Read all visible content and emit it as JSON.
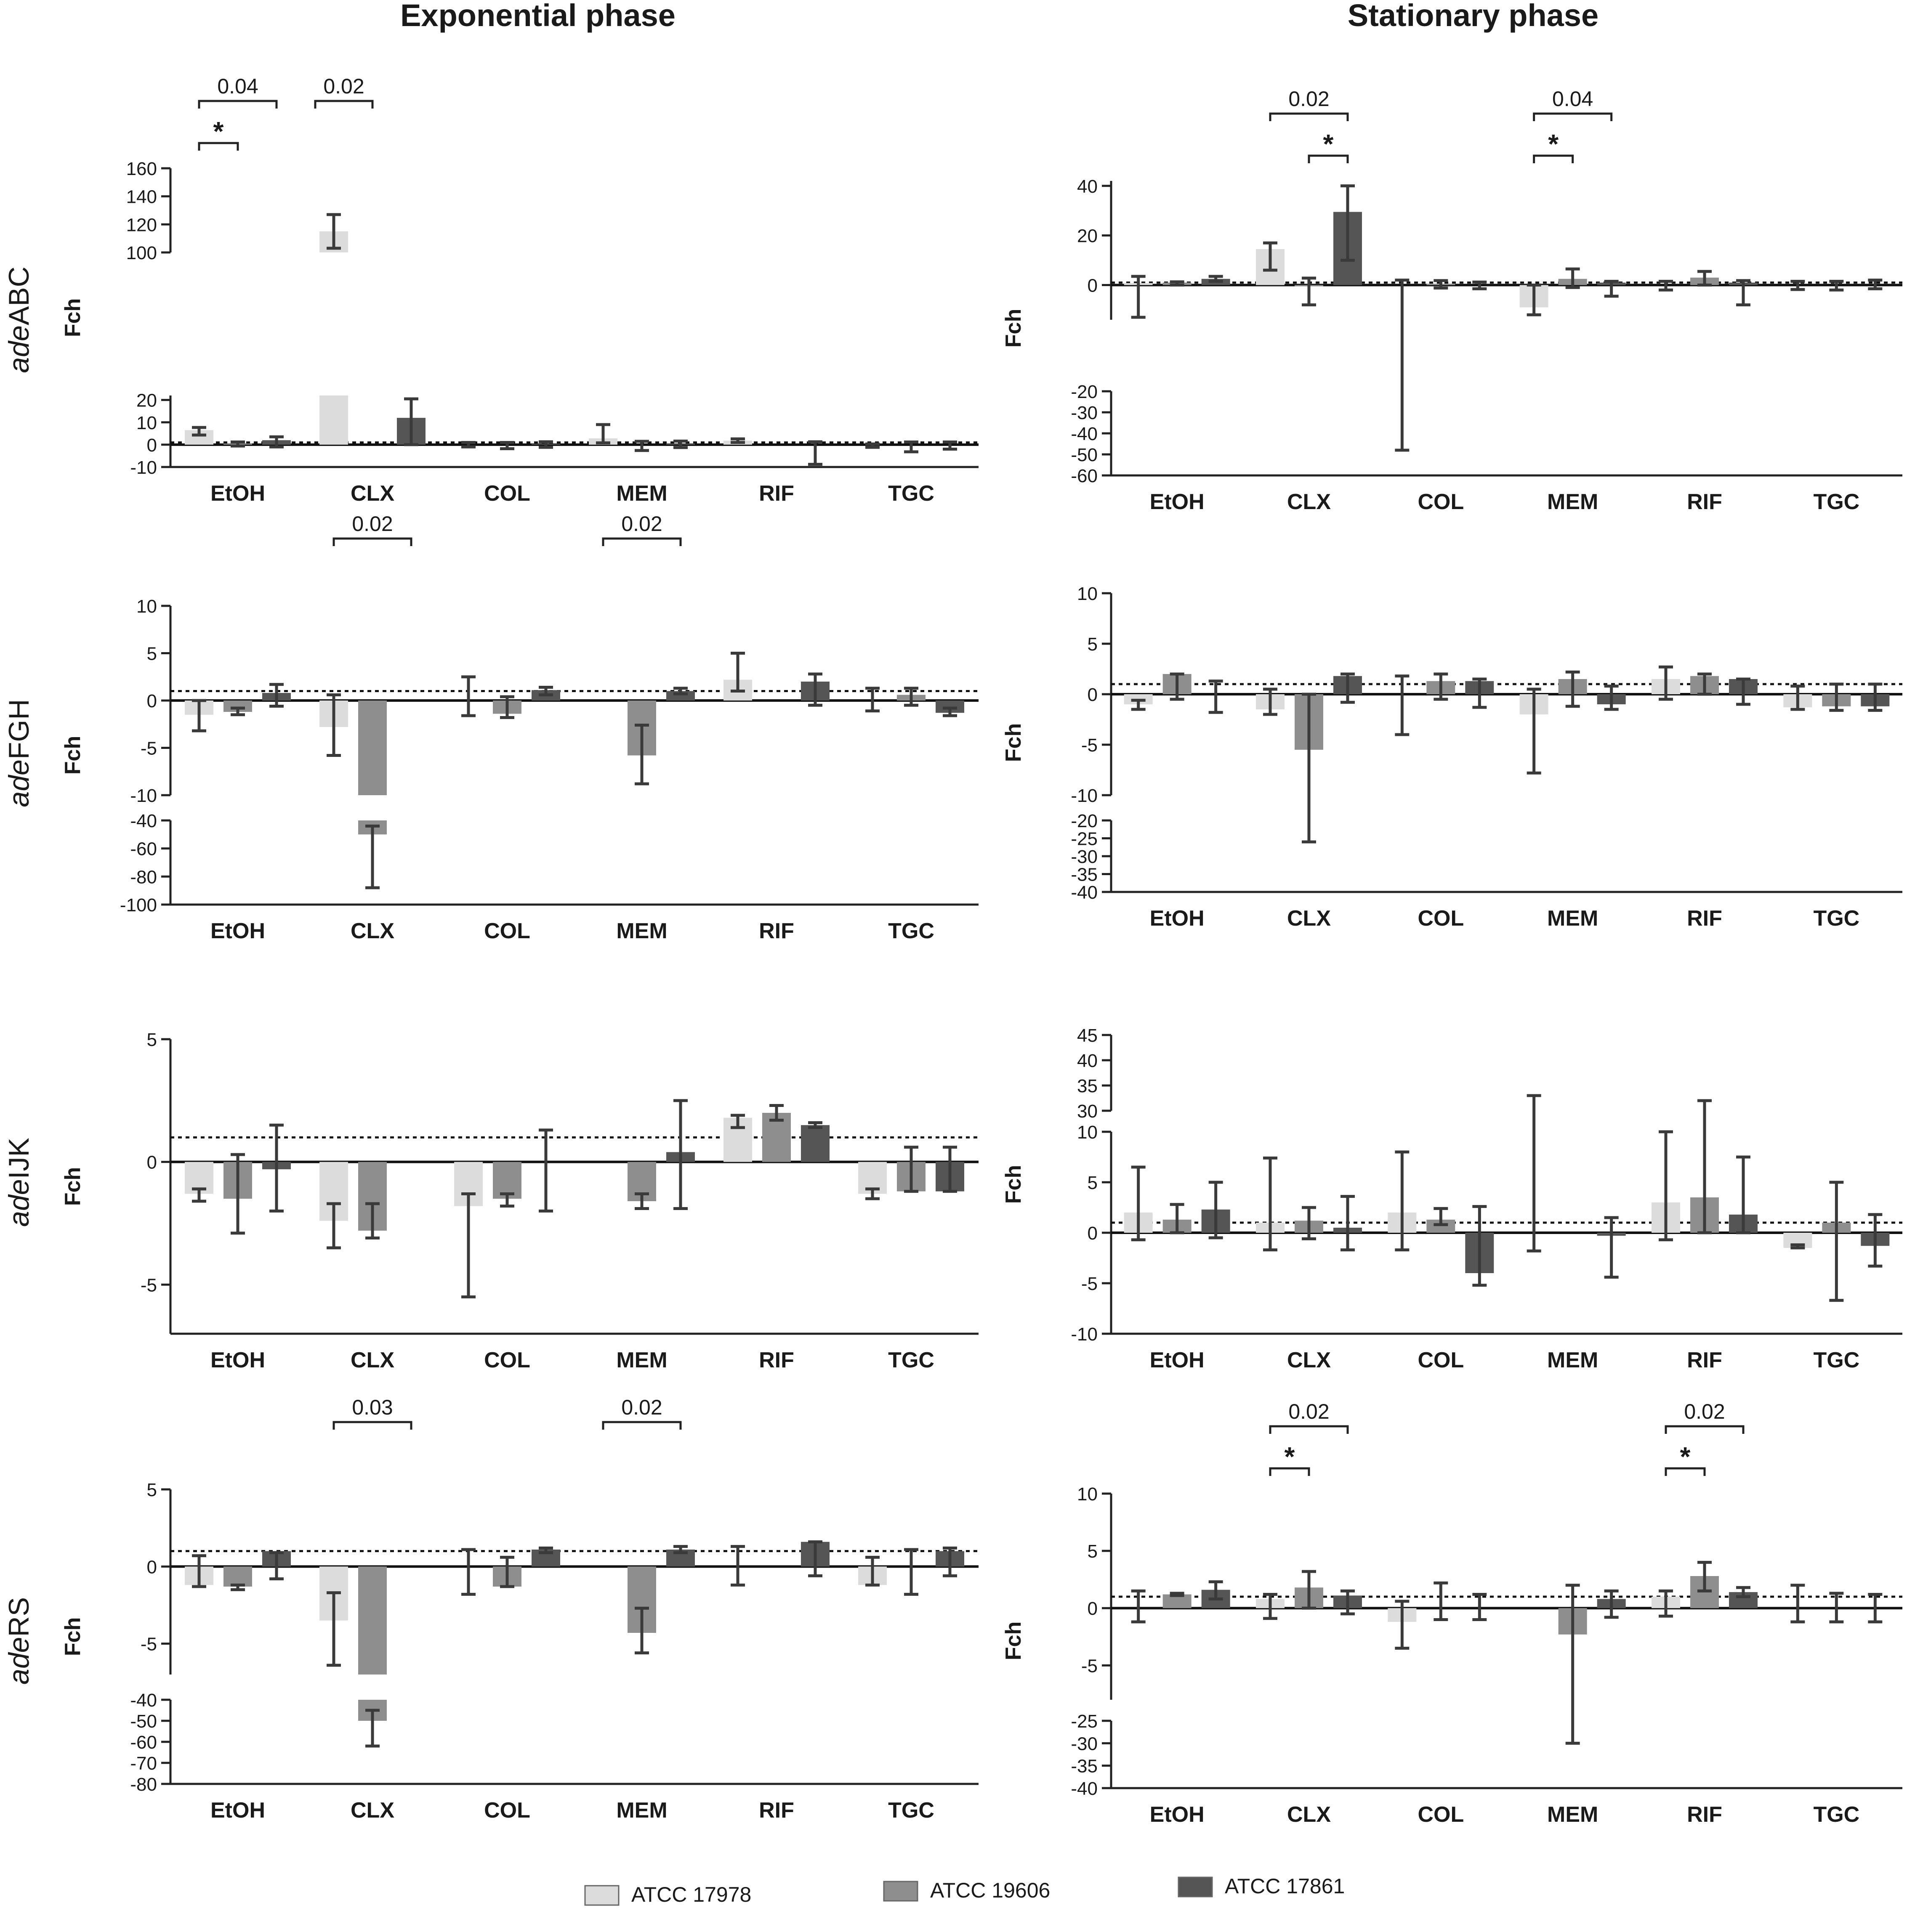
{
  "titles": {
    "left": "Exponential phase",
    "right": "Stationary phase"
  },
  "row_labels": [
    {
      "italic": "ade",
      "rest": "ABC"
    },
    {
      "italic": "ade",
      "rest": "FGH"
    },
    {
      "italic": "ade",
      "rest": "IJK"
    },
    {
      "italic": "ade",
      "rest": "RS"
    }
  ],
  "legend": [
    {
      "name": "ATCC 17978",
      "color": "#dcdcdc"
    },
    {
      "name": "ATCC 19606",
      "color": "#8e8e8e"
    },
    {
      "name": "ATCC 17861",
      "color": "#555555"
    }
  ],
  "chart_data": [
    {
      "type": "bar",
      "phase": "Exponential phase",
      "gene": "adeABC",
      "ylabel": "Fch",
      "categories": [
        "EtOH",
        "CLX",
        "COL",
        "MEM",
        "RIF",
        "TGC"
      ],
      "segments": [
        {
          "min": -10,
          "max": 22,
          "ticks": [
            -10,
            0,
            10,
            20
          ]
        },
        {
          "min": 100,
          "max": 160,
          "ticks": [
            100,
            120,
            140,
            160
          ]
        }
      ],
      "dotted_line": 1,
      "series": [
        {
          "name": "ATCC 17978",
          "values": [
            6.5,
            115,
            0,
            2.8,
            1.8,
            0
          ],
          "err_low": [
            4.3,
            103,
            -1.0,
            0.8,
            1.0,
            -1.2
          ],
          "err_high": [
            7.7,
            127,
            1.0,
            9.0,
            2.6,
            0.3
          ]
        },
        {
          "name": "ATCC 19606",
          "values": [
            0.5,
            0,
            0,
            0,
            0,
            0
          ],
          "err_low": [
            -0.6,
            0,
            -1.8,
            -2.6,
            0,
            -3.2
          ],
          "err_high": [
            1.2,
            0,
            1.0,
            1.5,
            0,
            1.2
          ]
        },
        {
          "name": "ATCC 17861",
          "values": [
            2.0,
            12.0,
            0.4,
            0.5,
            0,
            0
          ],
          "err_low": [
            -1.0,
            0,
            -1.2,
            -1.3,
            -8.8,
            -2.0
          ],
          "err_high": [
            3.5,
            20.5,
            1.3,
            1.6,
            1.3,
            1.2
          ]
        }
      ],
      "significance": [
        {
          "label": "0.04",
          "from": [
            0,
            0
          ],
          "to": [
            0,
            2
          ],
          "level": 1
        },
        {
          "label": "0.02",
          "from": [
            0,
            3
          ],
          "to": [
            1,
            1
          ],
          "level": 1
        },
        {
          "label": "*",
          "from": [
            0,
            0
          ],
          "to": [
            0,
            1
          ],
          "level": 0
        }
      ]
    },
    {
      "type": "bar",
      "phase": "Stationary phase",
      "gene": "adeABC",
      "ylabel": "Fch",
      "categories": [
        "EtOH",
        "CLX",
        "COL",
        "MEM",
        "RIF",
        "TGC"
      ],
      "segments": [
        {
          "min": -60,
          "max": -20,
          "ticks": [
            -60,
            -50,
            -40,
            -30,
            -20
          ]
        },
        {
          "min": -14,
          "max": 42,
          "ticks": [
            0,
            20,
            40
          ]
        }
      ],
      "dotted_line": 1,
      "series": [
        {
          "name": "ATCC 17978",
          "values": [
            0.8,
            14.5,
            0,
            -9.0,
            0,
            0
          ],
          "err_low": [
            -13,
            6.0,
            -48,
            -12.0,
            -2.0,
            -1.8
          ],
          "err_high": [
            3.5,
            17.0,
            2.0,
            0,
            1.5,
            1.5
          ]
        },
        {
          "name": "ATCC 19606",
          "values": [
            1.0,
            -0.5,
            0.5,
            2.5,
            3.0,
            0
          ],
          "err_low": [
            0,
            -8.0,
            -1.2,
            -1.0,
            0,
            -2.0
          ],
          "err_high": [
            1.3,
            2.8,
            1.8,
            6.5,
            5.5,
            1.5
          ]
        },
        {
          "name": "ATCC 17861",
          "values": [
            2.5,
            29.5,
            0,
            1.0,
            1.0,
            0
          ],
          "err_low": [
            1.5,
            10.0,
            -1.5,
            -4.5,
            -8.0,
            -1.5
          ],
          "err_high": [
            3.5,
            40.0,
            1.2,
            1.5,
            1.8,
            2.0
          ]
        }
      ],
      "significance": [
        {
          "label": "0.02",
          "from": [
            1,
            0
          ],
          "to": [
            1,
            2
          ],
          "level": 1
        },
        {
          "label": "*",
          "from": [
            1,
            1
          ],
          "to": [
            1,
            2
          ],
          "level": 0
        },
        {
          "label": "0.04",
          "from": [
            3,
            0
          ],
          "to": [
            3,
            2
          ],
          "level": 1
        },
        {
          "label": "*",
          "from": [
            3,
            0
          ],
          "to": [
            3,
            1
          ],
          "level": 0
        }
      ]
    },
    {
      "type": "bar",
      "phase": "Exponential phase",
      "gene": "adeFGH",
      "ylabel": "Fch",
      "categories": [
        "EtOH",
        "CLX",
        "COL",
        "MEM",
        "RIF",
        "TGC"
      ],
      "segments": [
        {
          "min": -100,
          "max": -40,
          "ticks": [
            -100,
            -80,
            -60,
            -40
          ]
        },
        {
          "min": -10,
          "max": 10,
          "ticks": [
            -10,
            -5,
            0,
            5,
            10
          ]
        }
      ],
      "dotted_line": 1,
      "series": [
        {
          "name": "ATCC 17978",
          "values": [
            -1.5,
            -2.8,
            0,
            0,
            2.2,
            0
          ],
          "err_low": [
            -3.2,
            -5.8,
            -1.6,
            0,
            1.0,
            -1.1
          ],
          "err_high": [
            0,
            0.6,
            2.5,
            0,
            5.0,
            1.3
          ]
        },
        {
          "name": "ATCC 19606",
          "values": [
            -1.2,
            -50,
            -1.4,
            -5.8,
            0,
            0.6
          ],
          "err_low": [
            -1.5,
            -88,
            -1.8,
            -8.8,
            0,
            -0.5
          ],
          "err_high": [
            -0.8,
            -44,
            0.4,
            -2.6,
            0,
            1.3
          ]
        },
        {
          "name": "ATCC 17861",
          "values": [
            0.8,
            0,
            1.1,
            1.0,
            2.0,
            -1.3
          ],
          "err_low": [
            -0.6,
            0,
            0.6,
            0.7,
            -0.5,
            -1.6
          ],
          "err_high": [
            1.7,
            0,
            1.4,
            1.3,
            2.8,
            -0.8
          ]
        }
      ],
      "significance": [
        {
          "label": "0.02",
          "from": [
            1,
            0
          ],
          "to": [
            1,
            2
          ],
          "level": 1
        },
        {
          "label": "0.02",
          "from": [
            3,
            0
          ],
          "to": [
            3,
            2
          ],
          "level": 1
        }
      ]
    },
    {
      "type": "bar",
      "phase": "Stationary phase",
      "gene": "adeFGH",
      "ylabel": "Fch",
      "categories": [
        "EtOH",
        "CLX",
        "COL",
        "MEM",
        "RIF",
        "TGC"
      ],
      "segments": [
        {
          "min": -40,
          "max": -20,
          "ticks": [
            -40,
            -35,
            -30,
            -25,
            -20
          ]
        },
        {
          "min": -10,
          "max": 10,
          "ticks": [
            -10,
            -5,
            0,
            5,
            10
          ]
        }
      ],
      "dotted_line": 1,
      "series": [
        {
          "name": "ATCC 17978",
          "values": [
            -1.0,
            -1.5,
            0,
            -2.0,
            1.5,
            -1.3
          ],
          "err_low": [
            -1.5,
            -2.0,
            -4.0,
            -7.8,
            -0.5,
            -1.5
          ],
          "err_high": [
            -0.6,
            0.5,
            1.8,
            0.5,
            2.7,
            0.8
          ]
        },
        {
          "name": "ATCC 19606",
          "values": [
            2.0,
            -5.5,
            1.3,
            1.5,
            1.8,
            -1.2
          ],
          "err_low": [
            -0.5,
            -26,
            -0.5,
            -1.2,
            0,
            -1.6
          ],
          "err_high": [
            2.0,
            0,
            2.0,
            2.2,
            2.0,
            1.0
          ]
        },
        {
          "name": "ATCC 17861",
          "values": [
            0,
            1.8,
            1.3,
            -1.0,
            1.5,
            -1.2
          ],
          "err_low": [
            -1.8,
            -0.8,
            -1.3,
            -1.5,
            -1.0,
            -1.6
          ],
          "err_high": [
            1.3,
            2.0,
            1.5,
            0.8,
            1.5,
            1.0
          ]
        }
      ],
      "significance": []
    },
    {
      "type": "bar",
      "phase": "Exponential phase",
      "gene": "adeIJK",
      "ylabel": "Fch",
      "categories": [
        "EtOH",
        "CLX",
        "COL",
        "MEM",
        "RIF",
        "TGC"
      ],
      "segments": [
        {
          "min": -7,
          "max": 5,
          "ticks": [
            -5,
            0,
            5
          ]
        }
      ],
      "dotted_line": 1,
      "series": [
        {
          "name": "ATCC 17978",
          "values": [
            -1.3,
            -2.4,
            -1.8,
            0,
            1.8,
            -1.3
          ],
          "err_low": [
            -1.6,
            -3.5,
            -5.5,
            0,
            1.4,
            -1.5
          ],
          "err_high": [
            -1.1,
            -1.7,
            -1.3,
            0,
            1.9,
            -1.1
          ]
        },
        {
          "name": "ATCC 19606",
          "values": [
            -1.5,
            -2.8,
            -1.5,
            -1.6,
            2.0,
            -1.2
          ],
          "err_low": [
            -2.9,
            -3.1,
            -1.8,
            -1.9,
            1.7,
            -1.2
          ],
          "err_high": [
            0.3,
            -1.7,
            -1.3,
            -1.3,
            2.3,
            0.6
          ]
        },
        {
          "name": "ATCC 17861",
          "values": [
            -0.3,
            0,
            0,
            0.4,
            1.5,
            -1.2
          ],
          "err_low": [
            -2.0,
            0,
            -2.0,
            -1.9,
            1.4,
            -1.2
          ],
          "err_high": [
            1.5,
            0,
            1.3,
            2.5,
            1.6,
            0.6
          ]
        }
      ],
      "significance": []
    },
    {
      "type": "bar",
      "phase": "Stationary phase",
      "gene": "adeIJK",
      "ylabel": "Fch",
      "categories": [
        "EtOH",
        "CLX",
        "COL",
        "MEM",
        "RIF",
        "TGC"
      ],
      "segments": [
        {
          "min": -10,
          "max": 10,
          "ticks": [
            -10,
            -5,
            0,
            5,
            10
          ]
        },
        {
          "min": 30,
          "max": 45,
          "ticks": [
            30,
            35,
            40,
            45
          ]
        }
      ],
      "dotted_line": 1,
      "series": [
        {
          "name": "ATCC 17978",
          "values": [
            2.0,
            1.0,
            2.0,
            0,
            3.0,
            -1.5
          ],
          "err_low": [
            -0.7,
            -1.7,
            -1.7,
            -1.8,
            -0.7,
            -1.5
          ],
          "err_high": [
            6.5,
            7.4,
            8.0,
            33.0,
            10,
            -1.2
          ]
        },
        {
          "name": "ATCC 19606",
          "values": [
            1.3,
            1.2,
            1.3,
            0,
            3.5,
            1.0
          ],
          "err_low": [
            0,
            -0.6,
            0.8,
            0,
            0,
            -6.7
          ],
          "err_high": [
            2.8,
            2.5,
            2.4,
            0,
            32.0,
            5.0
          ]
        },
        {
          "name": "ATCC 17861",
          "values": [
            2.3,
            0.5,
            -4.0,
            -0.3,
            1.8,
            -1.3
          ],
          "err_low": [
            -0.5,
            -1.7,
            -5.2,
            -4.4,
            0,
            -3.3
          ],
          "err_high": [
            5.0,
            3.6,
            2.6,
            1.5,
            7.5,
            1.8
          ]
        }
      ],
      "significance": []
    },
    {
      "type": "bar",
      "phase": "Exponential phase",
      "gene": "adeRS",
      "ylabel": "Fch",
      "categories": [
        "EtOH",
        "CLX",
        "COL",
        "MEM",
        "RIF",
        "TGC"
      ],
      "segments": [
        {
          "min": -80,
          "max": -40,
          "ticks": [
            -80,
            -70,
            -60,
            -50,
            -40
          ]
        },
        {
          "min": -7,
          "max": 5,
          "ticks": [
            -5,
            0,
            5
          ]
        }
      ],
      "dotted_line": 1,
      "series": [
        {
          "name": "ATCC 17978",
          "values": [
            -1.2,
            -3.5,
            0,
            0,
            0,
            -1.2
          ],
          "err_low": [
            -1.3,
            -6.4,
            -1.8,
            0,
            -1.2,
            -1.2
          ],
          "err_high": [
            0.7,
            -1.7,
            1.1,
            0,
            1.3,
            0.6
          ]
        },
        {
          "name": "ATCC 19606",
          "values": [
            -1.3,
            -50,
            -1.3,
            -4.3,
            0,
            0
          ],
          "err_low": [
            -1.5,
            -62,
            -1.3,
            -5.6,
            0,
            -1.8
          ],
          "err_high": [
            -1.2,
            -45,
            0.6,
            -2.7,
            0,
            1.1
          ]
        },
        {
          "name": "ATCC 17861",
          "values": [
            1.0,
            0,
            1.1,
            1.1,
            1.6,
            1.0
          ],
          "err_low": [
            -0.8,
            0,
            0.9,
            0.9,
            -0.6,
            -0.6
          ],
          "err_high": [
            0.9,
            0,
            1.2,
            1.3,
            1.6,
            1.2
          ]
        }
      ],
      "significance": [
        {
          "label": "0.03",
          "from": [
            1,
            0
          ],
          "to": [
            1,
            2
          ],
          "level": 1
        },
        {
          "label": "0.02",
          "from": [
            3,
            0
          ],
          "to": [
            3,
            2
          ],
          "level": 1
        }
      ]
    },
    {
      "type": "bar",
      "phase": "Stationary phase",
      "gene": "adeRS",
      "ylabel": "Fch",
      "categories": [
        "EtOH",
        "CLX",
        "COL",
        "MEM",
        "RIF",
        "TGC"
      ],
      "segments": [
        {
          "min": -40,
          "max": -25,
          "ticks": [
            -40,
            -35,
            -30,
            -25
          ]
        },
        {
          "min": -8,
          "max": 10,
          "ticks": [
            -5,
            0,
            5,
            10
          ]
        }
      ],
      "dotted_line": 1,
      "series": [
        {
          "name": "ATCC 17978",
          "values": [
            0,
            0.8,
            -1.2,
            0,
            1.0,
            0
          ],
          "err_low": [
            -1.2,
            -0.9,
            -3.5,
            0,
            -0.7,
            -1.2
          ],
          "err_high": [
            1.5,
            1.2,
            0.6,
            0,
            1.5,
            2.0
          ]
        },
        {
          "name": "ATCC 19606",
          "values": [
            1.2,
            1.8,
            0,
            -2.3,
            2.8,
            0
          ],
          "err_low": [
            1.1,
            0,
            -1.0,
            -30,
            1.5,
            -1.2
          ],
          "err_high": [
            1.3,
            3.2,
            2.2,
            2.0,
            4.0,
            1.3
          ]
        },
        {
          "name": "ATCC 17861",
          "values": [
            1.6,
            1.1,
            0,
            0.8,
            1.4,
            0
          ],
          "err_low": [
            0.8,
            -0.5,
            -1.0,
            -0.8,
            1.0,
            -1.2
          ],
          "err_high": [
            2.3,
            1.5,
            1.2,
            1.5,
            1.8,
            1.2
          ]
        }
      ],
      "significance": [
        {
          "label": "0.02",
          "from": [
            1,
            0
          ],
          "to": [
            1,
            2
          ],
          "level": 1
        },
        {
          "label": "*",
          "from": [
            1,
            0
          ],
          "to": [
            1,
            1
          ],
          "level": 0
        },
        {
          "label": "0.02",
          "from": [
            4,
            0
          ],
          "to": [
            4,
            2
          ],
          "level": 1
        },
        {
          "label": "*",
          "from": [
            4,
            0
          ],
          "to": [
            4,
            1
          ],
          "level": 0
        }
      ]
    }
  ]
}
